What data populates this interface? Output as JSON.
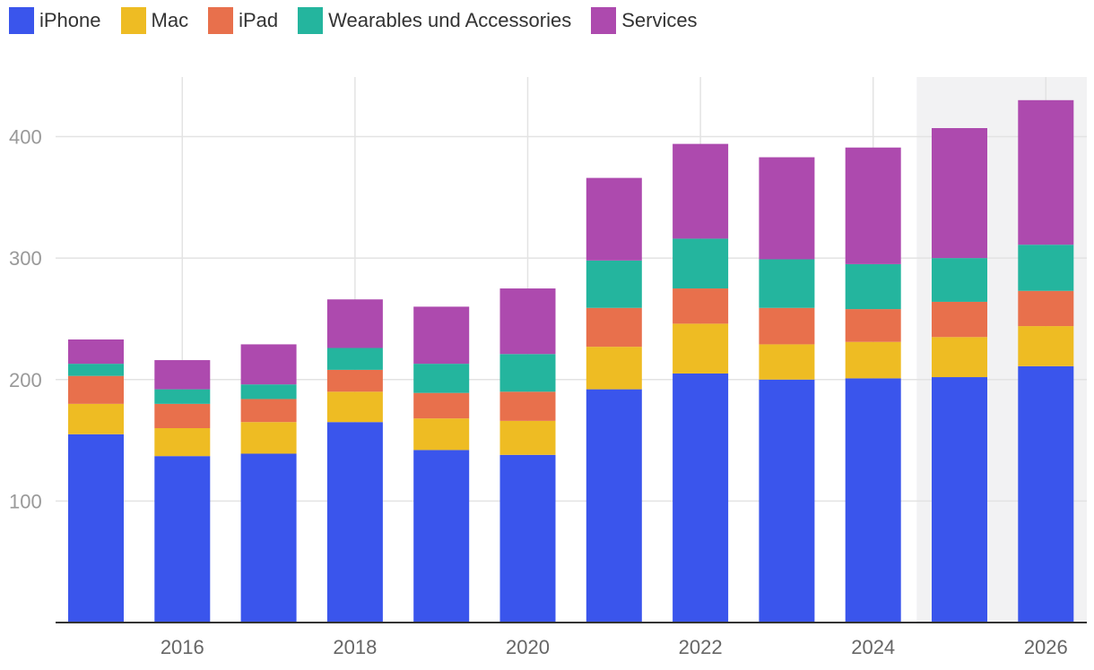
{
  "chart_data": {
    "type": "bar",
    "stacked": true,
    "title": "",
    "xlabel": "",
    "ylabel": "",
    "ylim": [
      0,
      450
    ],
    "yticks": [
      100,
      200,
      300,
      400
    ],
    "xticks": [
      "2016",
      "2018",
      "2020",
      "2022",
      "2024",
      "2026"
    ],
    "categories": [
      "2015",
      "2016",
      "2017",
      "2018",
      "2019",
      "2020",
      "2021",
      "2022",
      "2023",
      "2024",
      "2025",
      "2026"
    ],
    "highlighted_categories": [
      "2025",
      "2026"
    ],
    "legend_position": "top-left",
    "series": [
      {
        "name": "iPhone",
        "color": "#3a55ec",
        "values": [
          155,
          137,
          139,
          165,
          142,
          138,
          192,
          205,
          200,
          201,
          202,
          211
        ]
      },
      {
        "name": "Mac",
        "color": "#eebc23",
        "values": [
          25,
          23,
          26,
          25,
          26,
          28,
          35,
          41,
          29,
          30,
          33,
          33
        ]
      },
      {
        "name": "iPad",
        "color": "#e8704c",
        "values": [
          23,
          20,
          19,
          18,
          21,
          24,
          32,
          29,
          30,
          27,
          29,
          29
        ]
      },
      {
        "name": "Wearables und Accessories",
        "color": "#24b59e",
        "values": [
          10,
          12,
          12,
          18,
          24,
          31,
          39,
          41,
          40,
          37,
          36,
          38
        ]
      },
      {
        "name": "Services",
        "color": "#ad4aae",
        "values": [
          20,
          24,
          33,
          40,
          47,
          54,
          68,
          78,
          84,
          96,
          107,
          119
        ]
      }
    ]
  }
}
